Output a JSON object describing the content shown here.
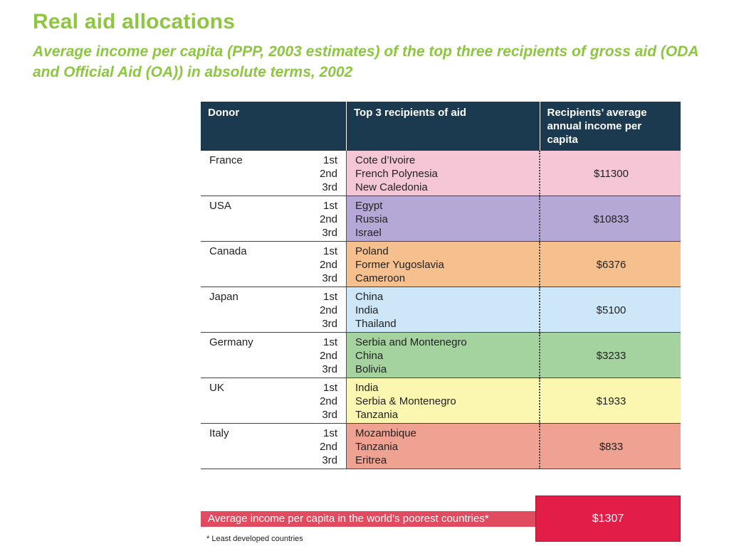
{
  "header": {
    "title": "Real aid allocations",
    "subtitle": "Average income per capita (PPP, 2003 estimates) of the top three recipients of gross aid (ODA and Official Aid (OA)) in absolute terms, 2002"
  },
  "table": {
    "columns": [
      "Donor",
      "Top 3 recipients of aid",
      "Recipients’ average annual income per capita"
    ],
    "rank_labels": [
      "1st",
      "2nd",
      "3rd"
    ],
    "rows": [
      {
        "donor": "France",
        "recipients": [
          "Cote d’Ivoire",
          "French Polynesia",
          "New Caledonia"
        ],
        "income": "$11300",
        "color": "#f5c6d6"
      },
      {
        "donor": "USA",
        "recipients": [
          "Egypt",
          "Russia",
          "Israel"
        ],
        "income": "$10833",
        "color": "#b6a8d6"
      },
      {
        "donor": "Canada",
        "recipients": [
          "Poland",
          "Former Yugoslavia",
          "Cameroon"
        ],
        "income": "$6376",
        "color": "#f6c08e"
      },
      {
        "donor": "Japan",
        "recipients": [
          "China",
          "India",
          "Thailand"
        ],
        "income": "$5100",
        "color": "#cde7f8"
      },
      {
        "donor": "Germany",
        "recipients": [
          "Serbia and Montenegro",
          "China",
          "Bolivia"
        ],
        "income": "$3233",
        "color": "#a4d3a0"
      },
      {
        "donor": "UK",
        "recipients": [
          "India",
          "Serbia & Montenegro",
          "Tanzania"
        ],
        "income": "$1933",
        "color": "#fbf6b0"
      },
      {
        "donor": "Italy",
        "recipients": [
          "Mozambique",
          "Tanzania",
          "Eritrea"
        ],
        "income": "$833",
        "color": "#f0a292"
      }
    ]
  },
  "poorest": {
    "label": "Average income per capita in the world’s poorest countries*",
    "value": "$1307"
  },
  "footnote": "* Least developed countries",
  "colors": {
    "title": "#8dc63f",
    "header_bg": "#1c3a4f",
    "poor_bar": "#e14b5f",
    "poor_value": "#e21d47"
  }
}
